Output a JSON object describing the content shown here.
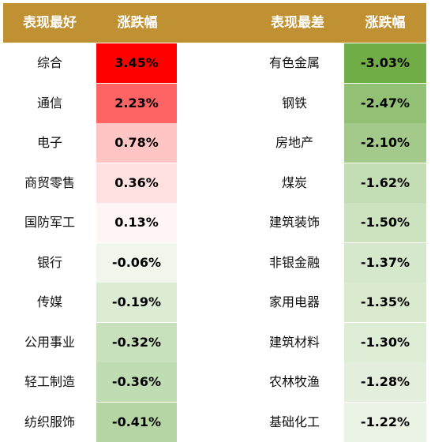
{
  "header": {
    "best_label": "表现最好",
    "change_label_left": "涨跌幅",
    "worst_label": "表现最差",
    "change_label_right": "涨跌幅",
    "bg_color": "#bf9133"
  },
  "best": [
    {
      "name": "综合",
      "change": "3.45%",
      "color": "#ff0000"
    },
    {
      "name": "通信",
      "change": "2.23%",
      "color": "#ff6464"
    },
    {
      "name": "电子",
      "change": "0.78%",
      "color": "#ffc4c4"
    },
    {
      "name": "商贸零售",
      "change": "0.36%",
      "color": "#ffe1e1"
    },
    {
      "name": "国防军工",
      "change": "0.13%",
      "color": "#fff5f4"
    },
    {
      "name": "银行",
      "change": "-0.06%",
      "color": "#f0f6ec"
    },
    {
      "name": "传媒",
      "change": "-0.19%",
      "color": "#dcebd4"
    },
    {
      "name": "公用事业",
      "change": "-0.32%",
      "color": "#c8e0bc"
    },
    {
      "name": "轻工制造",
      "change": "-0.36%",
      "color": "#c0dcb2"
    },
    {
      "name": "纺织服饰",
      "change": "-0.41%",
      "color": "#b5d5a4"
    }
  ],
  "worst": [
    {
      "name": "有色金属",
      "change": "-3.03%",
      "color": "#70ad47"
    },
    {
      "name": "钢铁",
      "change": "-2.47%",
      "color": "#92c176"
    },
    {
      "name": "房地产",
      "change": "-2.10%",
      "color": "#a3ca8a"
    },
    {
      "name": "煤炭",
      "change": "-1.62%",
      "color": "#c3ddb4"
    },
    {
      "name": "建筑装饰",
      "change": "-1.50%",
      "color": "#cde3c0"
    },
    {
      "name": "非银金融",
      "change": "-1.37%",
      "color": "#d6e8cb"
    },
    {
      "name": "家用电器",
      "change": "-1.35%",
      "color": "#d9eacf"
    },
    {
      "name": "建筑材料",
      "change": "-1.30%",
      "color": "#deedd6"
    },
    {
      "name": "农林牧渔",
      "change": "-1.28%",
      "color": "#e3efdc"
    },
    {
      "name": "基础化工",
      "change": "-1.22%",
      "color": "#eaf3e4"
    }
  ]
}
